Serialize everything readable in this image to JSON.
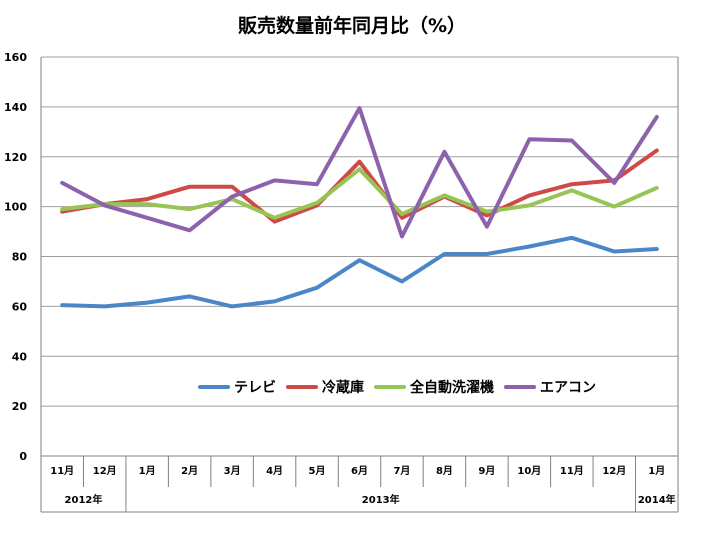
{
  "chart_data": {
    "type": "line",
    "title": "販売数量前年同月比（%）",
    "xlabel": "",
    "ylabel": "",
    "ylim": [
      0,
      160
    ],
    "yticks": [
      0,
      20,
      40,
      60,
      80,
      100,
      120,
      140,
      160
    ],
    "grid": true,
    "legend_position": "center",
    "categories": [
      "11月",
      "12月",
      "1月",
      "2月",
      "3月",
      "4月",
      "5月",
      "6月",
      "7月",
      "8月",
      "9月",
      "10月",
      "11月",
      "12月",
      "1月"
    ],
    "year_groups": [
      {
        "label": "2012年",
        "start": 0,
        "end": 1
      },
      {
        "label": "2013年",
        "start": 2,
        "end": 13
      },
      {
        "label": "2014年",
        "start": 14,
        "end": 14
      }
    ],
    "series": [
      {
        "name": "テレビ",
        "color": "#4a86c8",
        "values": [
          60.5,
          60,
          61.5,
          64,
          60,
          62,
          67.5,
          78.5,
          70,
          81,
          81,
          84,
          87.5,
          82,
          83
        ]
      },
      {
        "name": "冷蔵庫",
        "color": "#cf4a47",
        "values": [
          98,
          101,
          103,
          108,
          108,
          94,
          100.5,
          118,
          95.5,
          104,
          96.5,
          104.5,
          109,
          110.5,
          122.5
        ]
      },
      {
        "name": "全自動洗濯機",
        "color": "#98c454",
        "values": [
          99,
          101,
          101,
          99,
          103,
          95.5,
          101.5,
          115,
          97,
          104.5,
          98,
          100.5,
          106.5,
          100,
          107.5
        ]
      },
      {
        "name": "エアコン",
        "color": "#8b62ab",
        "values": [
          109.5,
          100.5,
          95.5,
          90.5,
          104,
          110.5,
          109,
          139.5,
          88,
          122,
          92,
          127,
          126.5,
          109.5,
          136
        ]
      }
    ]
  }
}
